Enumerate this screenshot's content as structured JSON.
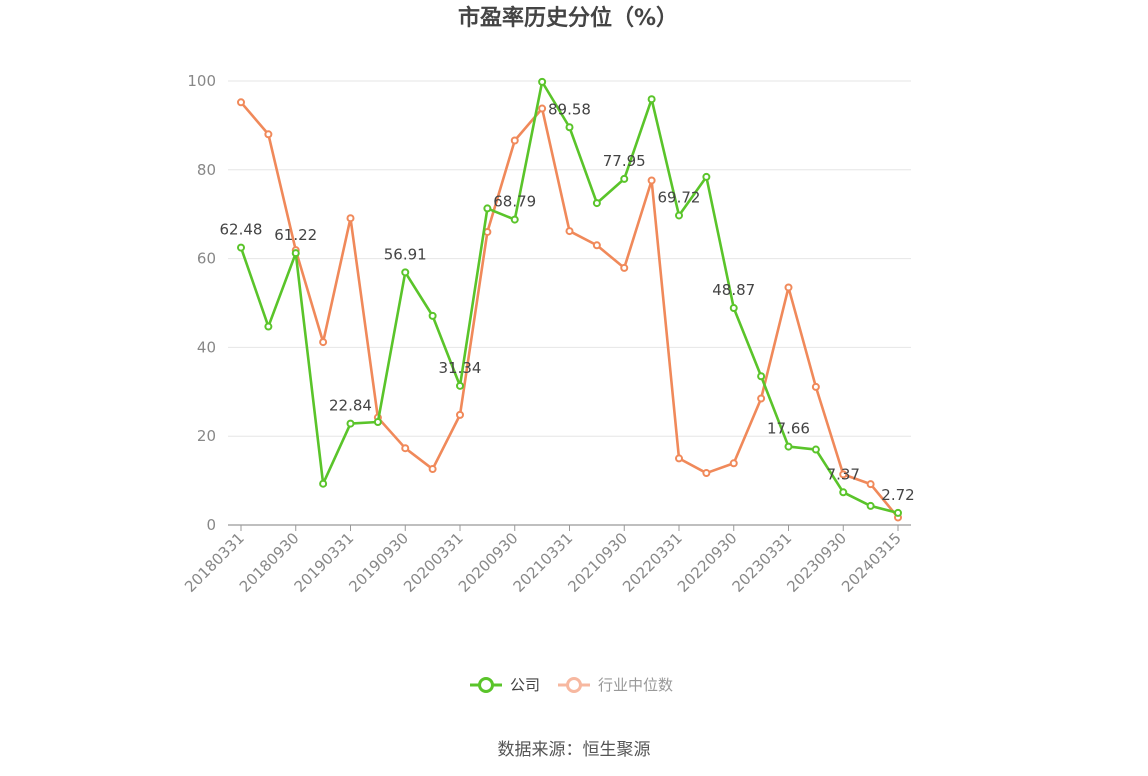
{
  "chart_data": {
    "type": "line",
    "title": "市盈率历史分位（%）",
    "xlabel": "",
    "ylabel": "",
    "ylim": [
      0,
      100
    ],
    "yticks": [
      0,
      20,
      40,
      60,
      80,
      100
    ],
    "x_tick_labels": [
      "20180331",
      "20180930",
      "20190331",
      "20190930",
      "20200331",
      "20200930",
      "20210331",
      "20210930",
      "20220331",
      "20220930",
      "20230331",
      "20230930",
      "20240315"
    ],
    "x": [
      "20180331",
      "20180630",
      "20180930",
      "20181231",
      "20190331",
      "20190630",
      "20190930",
      "20191231",
      "20200331",
      "20200630",
      "20200930",
      "20201231",
      "20210331",
      "20210630",
      "20210930",
      "20211231",
      "20220331",
      "20220630",
      "20220930",
      "20221231",
      "20230331",
      "20230630",
      "20230930",
      "20231231",
      "20240315"
    ],
    "series": [
      {
        "name": "公司",
        "color": "#5ac42a",
        "values": [
          62.48,
          44.7,
          61.22,
          9.3,
          22.84,
          23.2,
          56.91,
          47.1,
          31.34,
          71.3,
          68.79,
          99.8,
          89.58,
          72.5,
          77.95,
          95.9,
          69.72,
          78.4,
          48.87,
          33.5,
          17.66,
          17.0,
          7.37,
          4.3,
          2.72
        ],
        "labels": [
          "62.48",
          "",
          "61.22",
          "",
          "22.84",
          "",
          "56.91",
          "",
          "31.34",
          "",
          "68.79",
          "",
          "89.58",
          "",
          "77.95",
          "",
          "69.72",
          "",
          "48.87",
          "",
          "17.66",
          "",
          "7.37",
          "",
          "2.72"
        ]
      },
      {
        "name": "行业中位数",
        "color": "#f0895a",
        "values": [
          95.2,
          88.0,
          61.9,
          41.2,
          69.1,
          24.2,
          17.3,
          12.6,
          24.8,
          66.0,
          86.6,
          93.8,
          66.2,
          63.0,
          57.9,
          77.6,
          15.0,
          11.7,
          13.9,
          28.5,
          53.5,
          31.1,
          11.4,
          9.2,
          1.7
        ]
      }
    ],
    "legend_position": "bottom-center",
    "grid": true
  },
  "legend": {
    "company": "公司",
    "industry": "行业中位数"
  },
  "source": "数据来源：恒生聚源"
}
